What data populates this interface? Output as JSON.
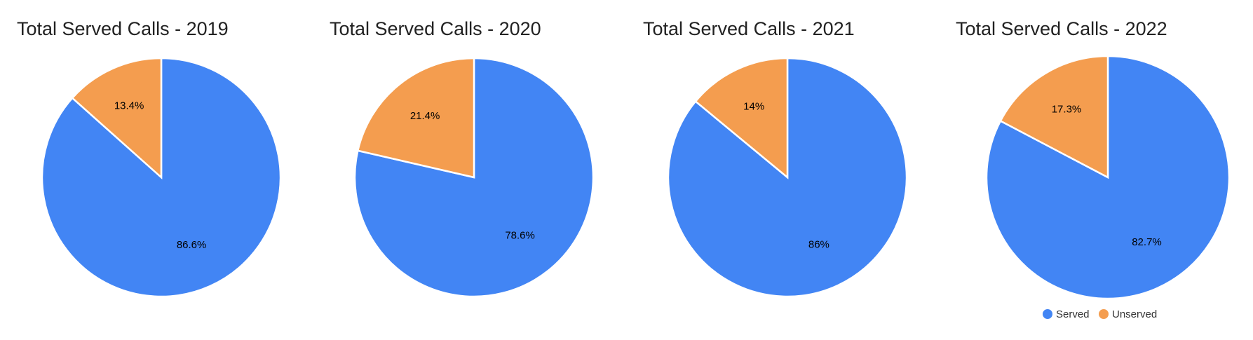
{
  "colors": {
    "served": "#4285f4",
    "unserved": "#f49d4f"
  },
  "chart_data": [
    {
      "type": "pie",
      "title": "Total Served Calls - 2019",
      "slices": [
        {
          "name": "Served",
          "value": 86.6,
          "label": "86.6%"
        },
        {
          "name": "Unserved",
          "value": 13.4,
          "label": "13.4%"
        }
      ]
    },
    {
      "type": "pie",
      "title": "Total Served Calls - 2020",
      "slices": [
        {
          "name": "Served",
          "value": 78.6,
          "label": "78.6%"
        },
        {
          "name": "Unserved",
          "value": 21.4,
          "label": "21.4%"
        }
      ]
    },
    {
      "type": "pie",
      "title": "Total Served Calls - 2021",
      "slices": [
        {
          "name": "Served",
          "value": 86,
          "label": "86%"
        },
        {
          "name": "Unserved",
          "value": 14,
          "label": "14%"
        }
      ]
    },
    {
      "type": "pie",
      "title": "Total Served Calls - 2022",
      "slices": [
        {
          "name": "Served",
          "value": 82.7,
          "label": "82.7%"
        },
        {
          "name": "Unserved",
          "value": 17.3,
          "label": "17.3%"
        }
      ],
      "legend": {
        "position": "bottom",
        "entries": [
          "Served",
          "Unserved"
        ]
      }
    }
  ]
}
